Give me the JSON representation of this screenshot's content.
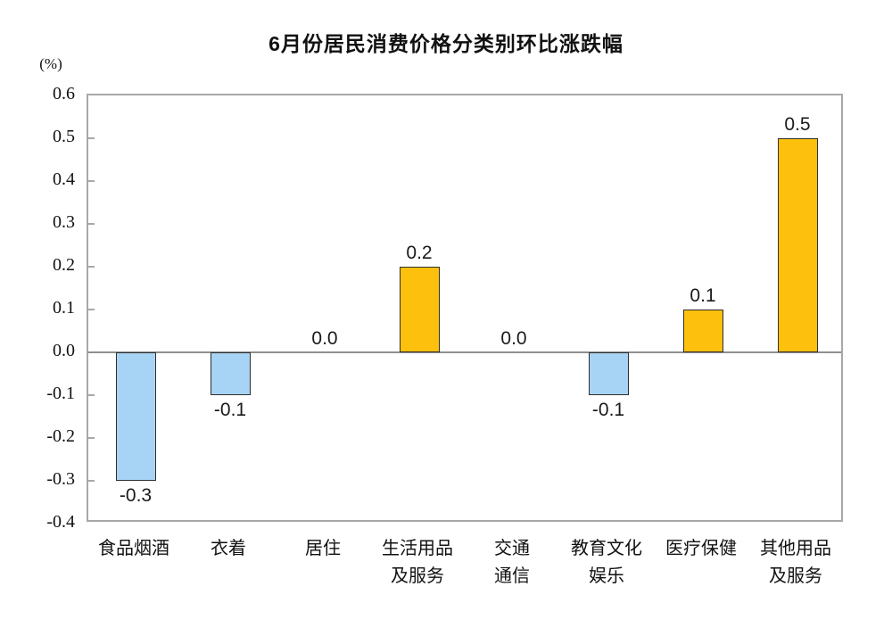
{
  "title": "6月份居民消费价格分类别环比涨跌幅",
  "unit_label": "(%)",
  "chart_data": {
    "type": "bar",
    "title": "6月份居民消费价格分类别环比涨跌幅",
    "ylabel": "(%)",
    "xlabel": "",
    "categories": [
      "食品烟酒",
      "衣着",
      "居住",
      "生活用品\n及服务",
      "交通\n通信",
      "教育文化\n娱乐",
      "医疗保健",
      "其他用品\n及服务"
    ],
    "values": [
      -0.3,
      -0.1,
      0.0,
      0.2,
      0.0,
      -0.1,
      0.1,
      0.5
    ],
    "value_labels": [
      "-0.3",
      "-0.1",
      "0.0",
      "0.2",
      "0.0",
      "-0.1",
      "0.1",
      "0.5"
    ],
    "ylim": [
      -0.4,
      0.6
    ],
    "ytick_step": 0.1,
    "ytick_labels": [
      "0.6",
      "0.5",
      "0.4",
      "0.3",
      "0.2",
      "0.1",
      "0.0",
      "-0.1",
      "-0.2",
      "-0.3",
      "-0.4"
    ],
    "grid": false,
    "legend": "none",
    "colors": {
      "positive_bar": "#FCC00D",
      "negative_bar": "#A7D3F4",
      "bar_border": "#2F2F2F",
      "axis_frame": "#A8A8A8",
      "zero_line": "#8F8F8F",
      "text": "#111111"
    }
  }
}
